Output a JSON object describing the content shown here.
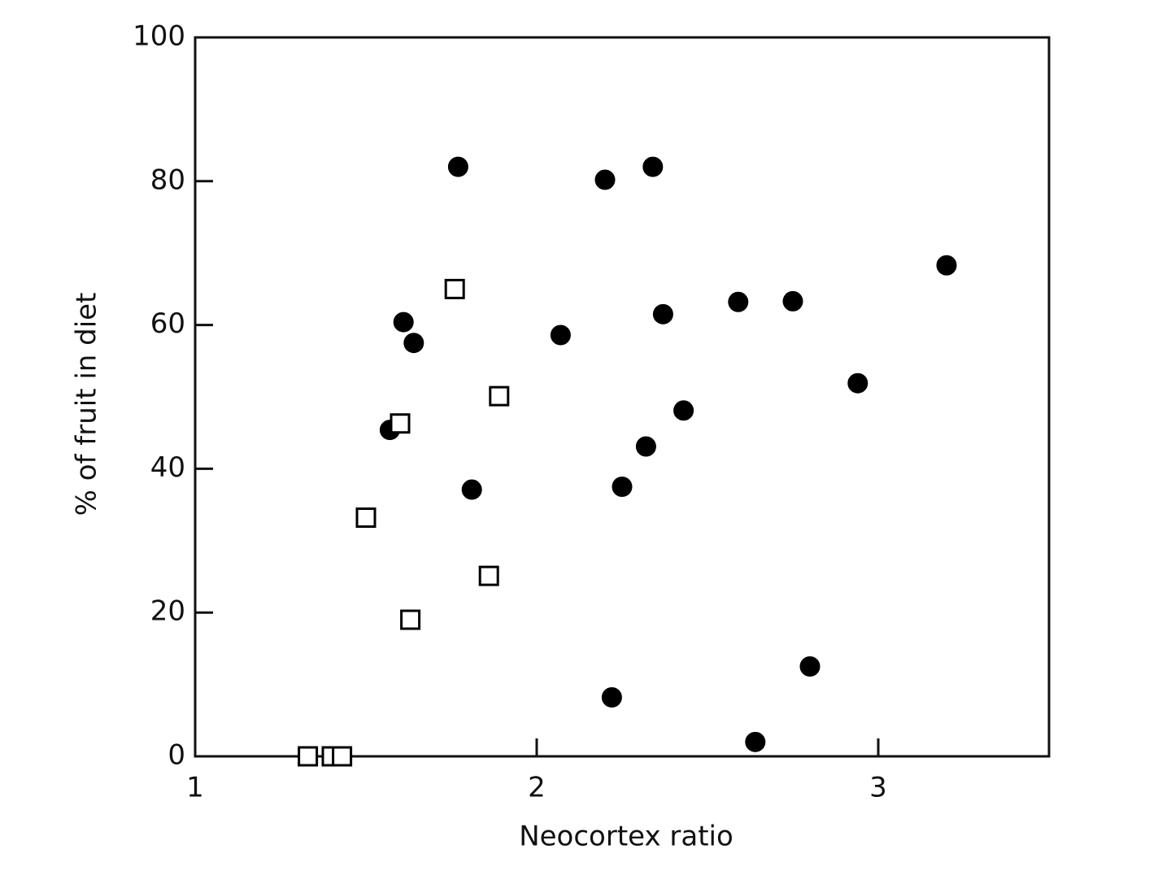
{
  "chart_data": {
    "type": "scatter",
    "x_label": "Neocortex ratio",
    "y_label": "% of fruit in diet",
    "xlim": [
      1,
      3.5
    ],
    "xticks": [
      1,
      2,
      3
    ],
    "ylim": [
      0,
      100
    ],
    "yticks": [
      0,
      20,
      40,
      60,
      80,
      100
    ],
    "series": [
      {
        "marker": "circle",
        "filled": true,
        "color": "#000000",
        "x": [
          1.77,
          2.2,
          2.34,
          3.2,
          1.61,
          1.64,
          2.07,
          2.37,
          2.59,
          2.75,
          2.94,
          2.43,
          1.57,
          2.32,
          1.81,
          2.25,
          2.22,
          2.8,
          2.64,
          1.43
        ],
        "values": [
          82,
          80.2,
          82,
          68.3,
          60.4,
          57.5,
          58.6,
          61.5,
          63.2,
          63.3,
          51.9,
          48.1,
          45.4,
          43.1,
          37.1,
          37.5,
          8.2,
          12.5,
          2,
          0
        ]
      },
      {
        "marker": "square",
        "filled": false,
        "color": "#000000",
        "x": [
          1.76,
          1.89,
          1.6,
          1.5,
          1.86,
          1.63,
          1.33,
          1.4,
          1.43
        ],
        "values": [
          65,
          50.1,
          46.3,
          33.2,
          25.1,
          19,
          0,
          0,
          0
        ]
      }
    ]
  }
}
